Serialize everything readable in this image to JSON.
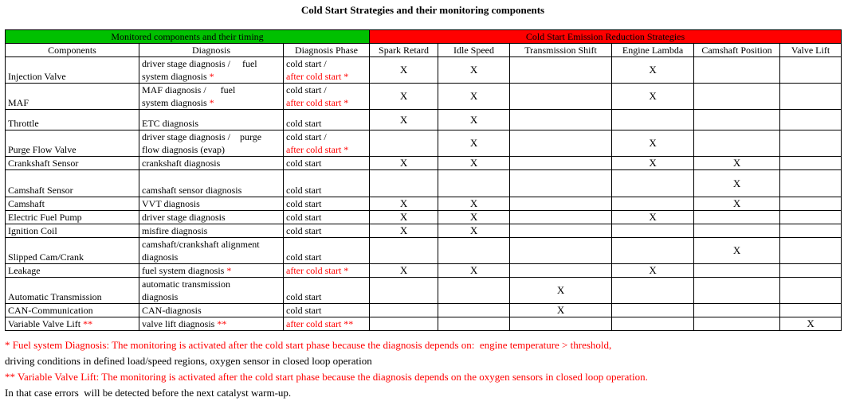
{
  "title": "Cold Start Strategies and their monitoring components",
  "colors": {
    "green_header": "#00C000",
    "red_header": "#FF0000",
    "red_text": "#FF0000"
  },
  "table": {
    "group_headers": [
      {
        "label": "Monitored components and their timing",
        "colspan": 3
      },
      {
        "label": "Cold Start Emission Reduction Strategies",
        "colspan": 6
      }
    ],
    "columns": [
      "Components",
      "Diagnosis",
      "Diagnosis Phase",
      "Spark Retard",
      "Idle Speed",
      "Transmission Shift",
      "Engine Lambda",
      "Camshaft Position",
      "Valve Lift"
    ],
    "rows": [
      {
        "component": [
          {
            "t": "Injection Valve"
          }
        ],
        "diagnosis": [
          {
            "t": "driver stage diagnosis /     fuel",
            "br": true
          },
          {
            "t": "system diagnosis "
          },
          {
            "t": "*",
            "red": true
          }
        ],
        "phase": [
          {
            "t": "cold start /",
            "br": true
          },
          {
            "t": "after cold start *",
            "red": true
          }
        ],
        "marks": [
          "X",
          "X",
          "",
          "X",
          "",
          ""
        ]
      },
      {
        "component": [
          {
            "t": "MAF"
          }
        ],
        "diagnosis": [
          {
            "t": "MAF diagnosis /      fuel",
            "br": true
          },
          {
            "t": "system diagnosis "
          },
          {
            "t": "*",
            "red": true
          }
        ],
        "phase": [
          {
            "t": "cold start /",
            "br": true
          },
          {
            "t": "after cold start *",
            "red": true
          }
        ],
        "marks": [
          "X",
          "X",
          "",
          "X",
          "",
          ""
        ]
      },
      {
        "component": [
          {
            "t": "Throttle"
          }
        ],
        "diagnosis": [
          {
            "t": "ETC diagnosis"
          }
        ],
        "phase": [
          {
            "t": "cold start"
          }
        ],
        "marks": [
          "X",
          "X",
          "",
          "",
          "",
          ""
        ]
      },
      {
        "component": [
          {
            "t": "Purge Flow Valve"
          }
        ],
        "diagnosis": [
          {
            "t": "driver stage diagnosis /    purge",
            "br": true
          },
          {
            "t": "flow diagnosis (evap)"
          }
        ],
        "phase": [
          {
            "t": "cold start /",
            "br": true
          },
          {
            "t": "after cold start *",
            "red": true
          }
        ],
        "marks": [
          "",
          "X",
          "",
          "X",
          "",
          ""
        ]
      },
      {
        "component": [
          {
            "t": "Crankshaft Sensor"
          }
        ],
        "diagnosis": [
          {
            "t": "crankshaft diagnosis"
          }
        ],
        "phase": [
          {
            "t": "cold start"
          }
        ],
        "marks": [
          "X",
          "X",
          "",
          "X",
          "X",
          ""
        ]
      },
      {
        "component": [
          {
            "t": "Camshaft Sensor"
          }
        ],
        "diagnosis": [
          {
            "t": "camshaft sensor diagnosis"
          }
        ],
        "phase": [
          {
            "t": "cold start"
          }
        ],
        "marks": [
          "",
          "",
          "",
          "",
          "X",
          ""
        ]
      },
      {
        "component": [
          {
            "t": "Camshaft"
          }
        ],
        "diagnosis": [
          {
            "t": "VVT diagnosis"
          }
        ],
        "phase": [
          {
            "t": "cold start"
          }
        ],
        "marks": [
          "X",
          "X",
          "",
          "",
          "X",
          ""
        ]
      },
      {
        "component": [
          {
            "t": "Electric Fuel Pump"
          }
        ],
        "diagnosis": [
          {
            "t": "driver stage diagnosis"
          }
        ],
        "phase": [
          {
            "t": "cold start"
          }
        ],
        "marks": [
          "X",
          "X",
          "",
          "X",
          "",
          ""
        ]
      },
      {
        "component": [
          {
            "t": "Ignition Coil"
          }
        ],
        "diagnosis": [
          {
            "t": "misfire diagnosis"
          }
        ],
        "phase": [
          {
            "t": "cold start"
          }
        ],
        "marks": [
          "X",
          "X",
          "",
          "",
          "",
          ""
        ]
      },
      {
        "component": [
          {
            "t": "Slipped Cam/Crank"
          }
        ],
        "diagnosis": [
          {
            "t": "camshaft/crankshaft alignment",
            "br": true
          },
          {
            "t": "diagnosis"
          }
        ],
        "phase": [
          {
            "t": "cold start"
          }
        ],
        "marks": [
          "",
          "",
          "",
          "",
          "X",
          ""
        ]
      },
      {
        "component": [
          {
            "t": "Leakage"
          }
        ],
        "diagnosis": [
          {
            "t": "fuel system diagnosis "
          },
          {
            "t": "*",
            "red": true
          }
        ],
        "phase": [
          {
            "t": "after cold start *",
            "red": true
          }
        ],
        "marks": [
          "X",
          "X",
          "",
          "X",
          "",
          ""
        ]
      },
      {
        "component": [
          {
            "t": "Automatic Transmission"
          }
        ],
        "diagnosis": [
          {
            "t": "automatic transmission",
            "br": true
          },
          {
            "t": "diagnosis"
          }
        ],
        "phase": [
          {
            "t": "cold start"
          }
        ],
        "marks": [
          "",
          "",
          "X",
          "",
          "",
          ""
        ]
      },
      {
        "component": [
          {
            "t": "CAN-Communication"
          }
        ],
        "diagnosis": [
          {
            "t": "CAN-diagnosis"
          }
        ],
        "phase": [
          {
            "t": "cold start"
          }
        ],
        "marks": [
          "",
          "",
          "X",
          "",
          "",
          ""
        ]
      },
      {
        "component": [
          {
            "t": "Variable Valve Lift "
          },
          {
            "t": "**",
            "red": true
          }
        ],
        "diagnosis": [
          {
            "t": "valve lift diagnosis "
          },
          {
            "t": "**",
            "red": true
          }
        ],
        "phase": [
          {
            "t": "after cold start **",
            "red": true
          }
        ],
        "marks": [
          "",
          "",
          "",
          "",
          "",
          "X"
        ]
      }
    ]
  },
  "footnotes": [
    {
      "t": "* Fuel system Diagnosis: The monitoring is activated after the cold start phase because the diagnosis depends on:  engine temperature > threshold,",
      "red": true
    },
    {
      "t": "driving conditions in defined load/speed regions, oxygen sensor in closed loop operation",
      "red": false
    },
    {
      "t": "** Variable Valve Lift: The monitoring is activated after the cold start phase because the diagnosis depends on the oxygen sensors in closed loop operation.",
      "red": true
    },
    {
      "t": "In that case errors  will be detected before the next catalyst warm-up.",
      "red": false
    }
  ]
}
